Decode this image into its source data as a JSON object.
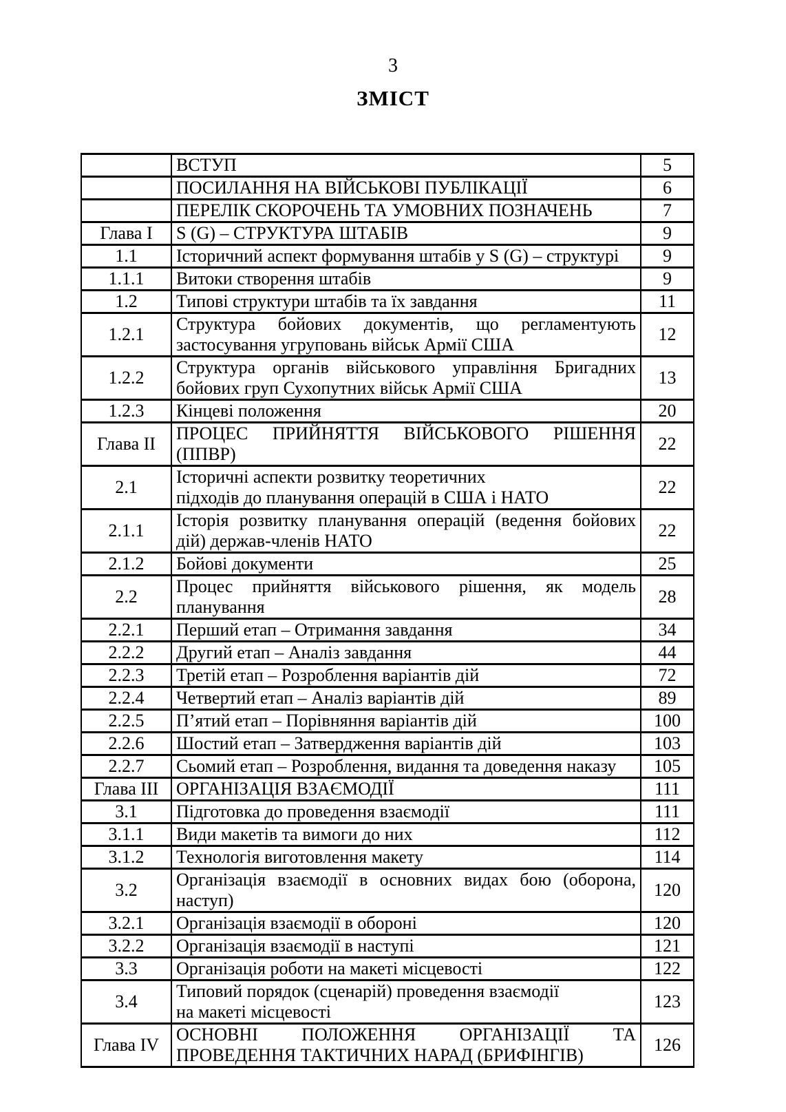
{
  "page": {
    "number": "3",
    "title": "ЗМІСТ"
  },
  "toc": {
    "rows": [
      {
        "label": "",
        "lines": [
          "ВСТУП"
        ],
        "page": "5",
        "justify": false
      },
      {
        "label": "",
        "lines": [
          "ПОСИЛАННЯ НА ВІЙСЬКОВІ ПУБЛІКАЦІЇ"
        ],
        "page": "6",
        "justify": false
      },
      {
        "label": "",
        "lines": [
          "ПЕРЕЛІК СКОРОЧЕНЬ ТА УМОВНИХ ПОЗНАЧЕНЬ"
        ],
        "page": "7",
        "justify": false
      },
      {
        "label": "Глава I",
        "lines": [
          "S (G) – СТРУКТУРА ШТАБІВ"
        ],
        "page": "9",
        "justify": false
      },
      {
        "label": "1.1",
        "lines": [
          "Історичний аспект формування штабів у S (G) – структурі"
        ],
        "page": "9",
        "justify": false
      },
      {
        "label": "1.1.1",
        "lines": [
          "Витоки створення штабів"
        ],
        "page": "9",
        "justify": false
      },
      {
        "label": "1.2",
        "lines": [
          "Типові структури штабів та їх завдання"
        ],
        "page": "11",
        "justify": false
      },
      {
        "label": "1.2.1",
        "lines": [
          "Структура бойових документів, що регламентують",
          "застосування угруповань військ Армії США"
        ],
        "page": "12",
        "justify": true
      },
      {
        "label": "1.2.2",
        "lines": [
          "Структура органів військового управління Бригадних",
          "бойових груп Сухопутних військ Армії США"
        ],
        "page": "13",
        "justify": true
      },
      {
        "label": "1.2.3",
        "lines": [
          "Кінцеві положення"
        ],
        "page": "20",
        "justify": false
      },
      {
        "label": "Глава II",
        "lines": [
          "ПРОЦЕС ПРИЙНЯТТЯ ВІЙСЬКОВОГО РІШЕННЯ",
          "(ППВР)"
        ],
        "page": "22",
        "justify": true
      },
      {
        "label": "2.1",
        "lines": [
          "Історичні аспекти розвитку теоретичних",
          "підходів до планування операцій в США і НАТО"
        ],
        "page": "22",
        "justify": false
      },
      {
        "label": "2.1.1",
        "lines": [
          "Історія розвитку планування операцій (ведення бойових",
          "дій) держав-членів НАТО"
        ],
        "page": "22",
        "justify": true
      },
      {
        "label": "2.1.2",
        "lines": [
          "Бойові документи"
        ],
        "page": "25",
        "justify": false
      },
      {
        "label": "2.2",
        "lines": [
          "Процес прийняття військового рішення, як модель",
          "планування"
        ],
        "page": "28",
        "justify": true
      },
      {
        "label": "2.2.1",
        "lines": [
          "Перший етап – Отримання завдання"
        ],
        "page": "34",
        "justify": false
      },
      {
        "label": "2.2.2",
        "lines": [
          "Другий етап – Аналіз завдання"
        ],
        "page": "44",
        "justify": false
      },
      {
        "label": "2.2.3",
        "lines": [
          "Третій етап – Розроблення варіантів дій"
        ],
        "page": "72",
        "justify": false
      },
      {
        "label": "2.2.4",
        "lines": [
          "Четвертий етап – Аналіз варіантів дій"
        ],
        "page": "89",
        "justify": false
      },
      {
        "label": "2.2.5",
        "lines": [
          "П’ятий етап – Порівняння варіантів дій"
        ],
        "page": "100",
        "justify": false
      },
      {
        "label": "2.2.6",
        "lines": [
          "Шостий етап – Затвердження варіантів дій"
        ],
        "page": "103",
        "justify": false
      },
      {
        "label": "2.2.7",
        "lines": [
          "Сьомий етап – Розроблення, видання та доведення наказу"
        ],
        "page": "105",
        "justify": false
      },
      {
        "label": "Глава III",
        "lines": [
          "ОРГАНІЗАЦІЯ ВЗАЄМОДІЇ"
        ],
        "page": "111",
        "justify": false
      },
      {
        "label": "3.1",
        "lines": [
          "Підготовка до проведення взаємодії"
        ],
        "page": "111",
        "justify": false
      },
      {
        "label": "3.1.1",
        "lines": [
          "Види макетів та вимоги до них"
        ],
        "page": "112",
        "justify": false
      },
      {
        "label": "3.1.2",
        "lines": [
          "Технологія виготовлення макету"
        ],
        "page": "114",
        "justify": false
      },
      {
        "label": "3.2",
        "lines": [
          "Організація взаємодії в основних видах бою (оборона,",
          "наступ)"
        ],
        "page": "120",
        "justify": true
      },
      {
        "label": "3.2.1",
        "lines": [
          "Організація взаємодії в обороні"
        ],
        "page": "120",
        "justify": false
      },
      {
        "label": "3.2.2",
        "lines": [
          "Організація взаємодії в наступі"
        ],
        "page": "121",
        "justify": false
      },
      {
        "label": "3.3",
        "lines": [
          "Організація роботи на макеті місцевості"
        ],
        "page": "122",
        "justify": false
      },
      {
        "label": "3.4",
        "lines": [
          "Типовий порядок (сценарій) проведення взаємодії",
          "на макеті місцевості"
        ],
        "page": "123",
        "justify": false
      },
      {
        "label": "Глава IV",
        "lines": [
          "ОСНОВНІ ПОЛОЖЕННЯ ОРГАНІЗАЦІЇ ТА",
          "ПРОВЕДЕННЯ ТАКТИЧНИХ НАРАД (БРИФІНГІВ)"
        ],
        "page": "126",
        "justify": true
      }
    ]
  }
}
